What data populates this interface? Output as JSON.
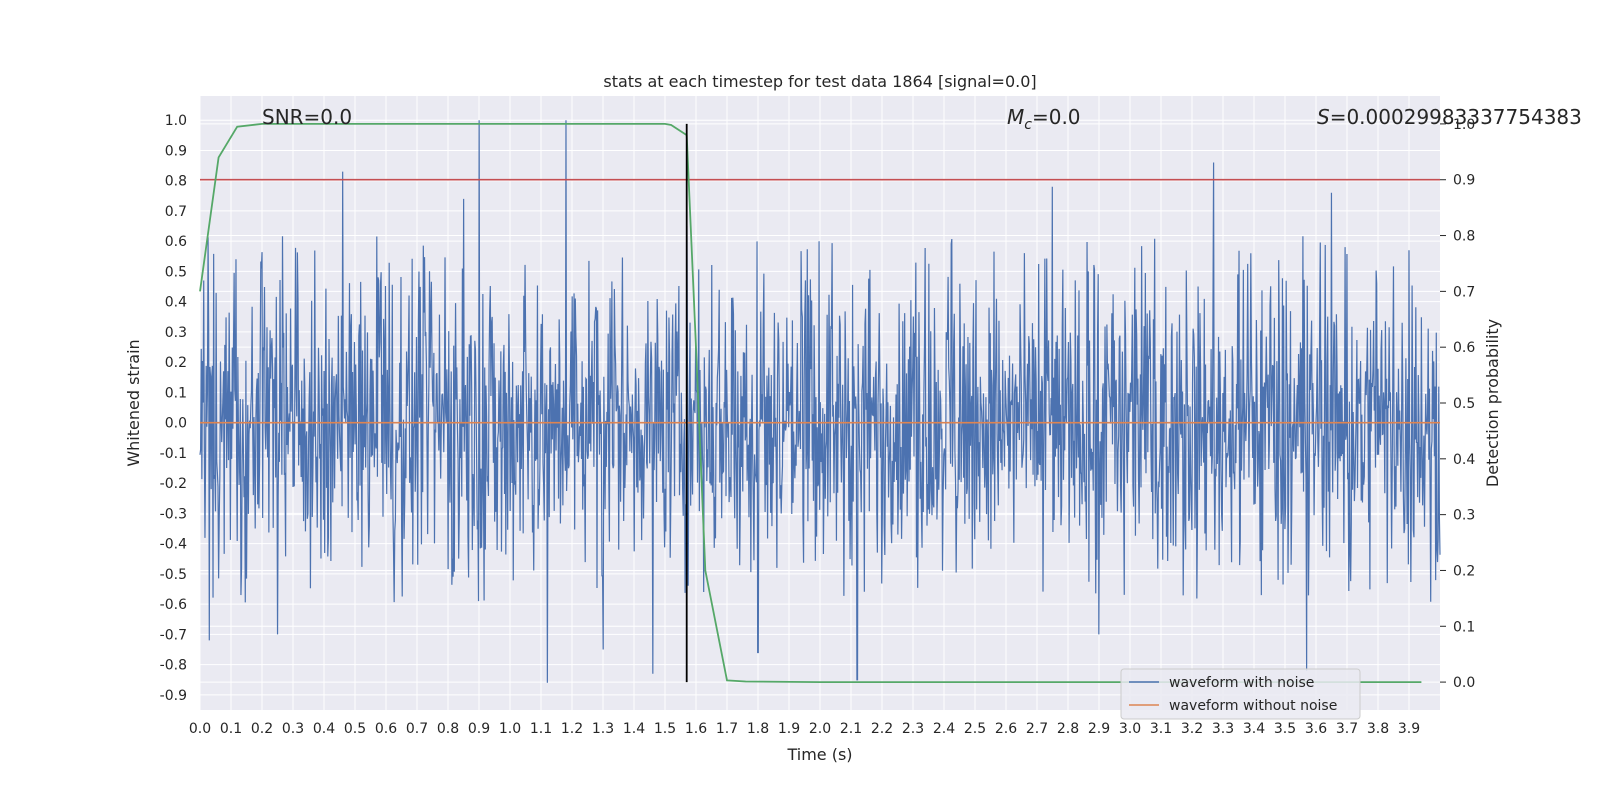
{
  "chart_data": {
    "type": "line",
    "title": "stats at each timestep for test data 1864 [signal=0.0]",
    "xlabel": "Time (s)",
    "ylabel_left": "Whitened strain",
    "ylabel_right": "Detection probability",
    "xlim": [
      0.0,
      4.0
    ],
    "ylim_left": [
      -0.95,
      1.08
    ],
    "ylim_right": [
      -0.05,
      1.05
    ],
    "x_ticks": [
      "0.0",
      "0.1",
      "0.2",
      "0.3",
      "0.4",
      "0.5",
      "0.6",
      "0.7",
      "0.8",
      "0.9",
      "1.0",
      "1.1",
      "1.2",
      "1.3",
      "1.4",
      "1.5",
      "1.6",
      "1.7",
      "1.8",
      "1.9",
      "2.0",
      "2.1",
      "2.2",
      "2.3",
      "2.4",
      "2.5",
      "2.6",
      "2.7",
      "2.8",
      "2.9",
      "3.0",
      "3.1",
      "3.2",
      "3.3",
      "3.4",
      "3.5",
      "3.6",
      "3.7",
      "3.8",
      "3.9"
    ],
    "y_ticks_left": [
      "-0.9",
      "-0.8",
      "-0.7",
      "-0.6",
      "-0.5",
      "-0.4",
      "-0.3",
      "-0.2",
      "-0.1",
      "0.0",
      "0.1",
      "0.2",
      "0.3",
      "0.4",
      "0.5",
      "0.6",
      "0.7",
      "0.8",
      "0.9",
      "1.0"
    ],
    "y_ticks_right": [
      "0.0",
      "0.1",
      "0.2",
      "0.3",
      "0.4",
      "0.5",
      "0.6",
      "0.7",
      "0.8",
      "0.9",
      "1.0"
    ],
    "grid": true,
    "annotations": {
      "snr": "SNR=0.0",
      "mc_symbol": "M",
      "mc_subscript": "c",
      "mc_value": "=0.0",
      "s_symbol": "S",
      "s_value": "=0.00029983337754383"
    },
    "threshold_line": {
      "axis": "right",
      "value": 0.9,
      "color": "#c44e52"
    },
    "vertical_marker": {
      "x": 1.57,
      "color": "#000000"
    },
    "noise_envelope": {
      "typical_upper": 0.32,
      "typical_lower": -0.3,
      "peaks": [
        {
          "x": 0.46,
          "y": 0.83
        },
        {
          "x": 0.9,
          "y": 1.0
        },
        {
          "x": 1.18,
          "y": 1.0
        },
        {
          "x": 1.57,
          "y": 0.65
        },
        {
          "x": 3.27,
          "y": 0.86
        },
        {
          "x": 3.65,
          "y": 0.76
        },
        {
          "x": 2.75,
          "y": 0.78
        },
        {
          "x": 0.85,
          "y": 0.74
        },
        {
          "x": 3.9,
          "y": 0.57
        }
      ],
      "troughs": [
        {
          "x": 0.03,
          "y": -0.72
        },
        {
          "x": 1.12,
          "y": -0.86
        },
        {
          "x": 1.46,
          "y": -0.83
        },
        {
          "x": 2.12,
          "y": -0.85
        },
        {
          "x": 3.57,
          "y": -0.82
        },
        {
          "x": 1.8,
          "y": -0.76
        },
        {
          "x": 1.3,
          "y": -0.75
        },
        {
          "x": 0.25,
          "y": -0.7
        },
        {
          "x": 2.9,
          "y": -0.7
        }
      ]
    },
    "series": [
      {
        "name": "waveform with noise",
        "color": "#4c72b0",
        "axis": "left",
        "kind": "noise"
      },
      {
        "name": "waveform without noise",
        "color": "#dd8452",
        "axis": "left",
        "kind": "flat",
        "value": 0.0
      },
      {
        "name": "detection probability",
        "color": "#55a868",
        "axis": "right",
        "legend": false,
        "x": [
          0.0,
          0.06,
          0.12,
          0.2,
          0.5,
          1.0,
          1.5,
          1.52,
          1.57,
          1.6,
          1.63,
          1.7,
          1.76,
          2.0,
          3.0,
          3.94
        ],
        "y": [
          0.7,
          0.94,
          0.995,
          1.0,
          1.0,
          1.0,
          1.0,
          0.998,
          0.98,
          0.6,
          0.2,
          0.003,
          0.001,
          0.0,
          0.0,
          0.0
        ]
      }
    ],
    "legend": {
      "location": "lower right",
      "entries": [
        "waveform with noise",
        "waveform without noise"
      ]
    }
  }
}
